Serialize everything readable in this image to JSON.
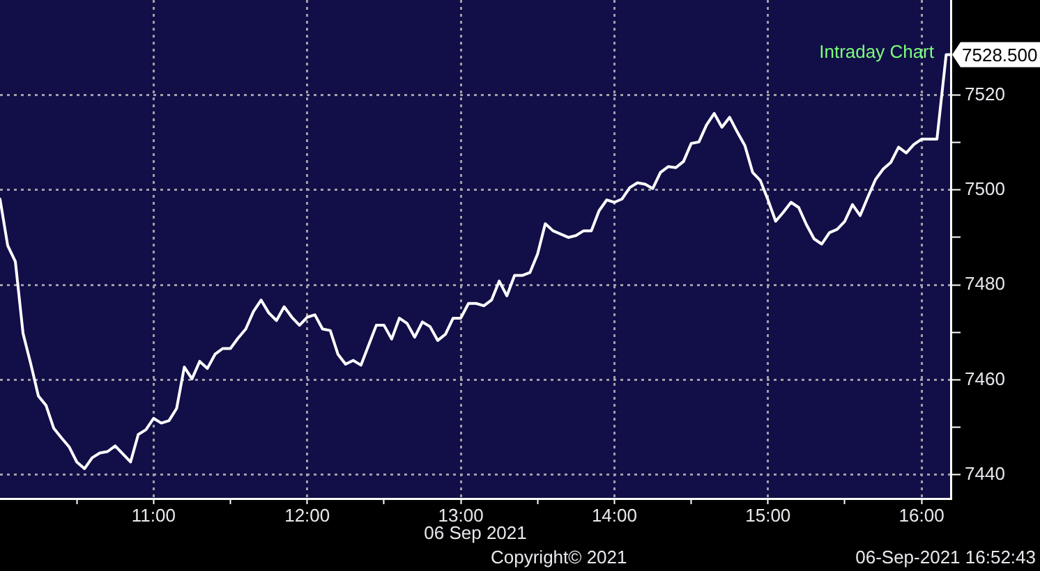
{
  "chart_data": {
    "type": "line",
    "title": "Intraday Chart",
    "xlabel": "06 Sep 2021",
    "x": [
      10.0,
      10.05,
      10.1,
      10.15,
      10.2,
      10.25,
      10.3,
      10.35,
      10.4,
      10.45,
      10.5,
      10.55,
      10.6,
      10.65,
      10.7,
      10.75,
      10.8,
      10.85,
      10.9,
      10.95,
      11.0,
      11.05,
      11.1,
      11.15,
      11.2,
      11.25,
      11.3,
      11.35,
      11.4,
      11.45,
      11.5,
      11.55,
      11.6,
      11.65,
      11.7,
      11.75,
      11.8,
      11.85,
      11.9,
      11.95,
      12.0,
      12.05,
      12.1,
      12.15,
      12.2,
      12.25,
      12.3,
      12.35,
      12.4,
      12.45,
      12.5,
      12.55,
      12.6,
      12.65,
      12.7,
      12.75,
      12.8,
      12.85,
      12.9,
      12.95,
      13.0,
      13.05,
      13.1,
      13.15,
      13.2,
      13.25,
      13.3,
      13.35,
      13.4,
      13.45,
      13.5,
      13.55,
      13.6,
      13.65,
      13.7,
      13.75,
      13.8,
      13.85,
      13.9,
      13.95,
      14.0,
      14.05,
      14.1,
      14.15,
      14.2,
      14.25,
      14.3,
      14.35,
      14.4,
      14.45,
      14.5,
      14.55,
      14.6,
      14.65,
      14.7,
      14.75,
      14.8,
      14.85,
      14.9,
      14.95,
      15.0,
      15.05,
      15.1,
      15.15,
      15.2,
      15.25,
      15.3,
      15.35,
      15.4,
      15.45,
      15.5,
      15.55,
      15.6,
      15.65,
      15.7,
      15.75,
      15.8,
      15.85,
      15.9,
      15.95,
      16.0,
      16.05,
      16.1,
      16.16,
      16.19
    ],
    "values": [
      7498.1,
      7488.3,
      7484.9,
      7469.8,
      7463.4,
      7456.6,
      7454.6,
      7449.8,
      7447.8,
      7445.9,
      7442.7,
      7441.3,
      7443.6,
      7444.6,
      7444.9,
      7446.1,
      7444.4,
      7442.7,
      7448.5,
      7449.5,
      7451.9,
      7450.9,
      7451.4,
      7454.0,
      7462.7,
      7460.2,
      7463.9,
      7462.4,
      7465.4,
      7466.6,
      7466.6,
      7468.8,
      7470.7,
      7474.4,
      7476.8,
      7474.1,
      7472.5,
      7475.4,
      7473.2,
      7471.5,
      7473.2,
      7473.7,
      7470.7,
      7470.4,
      7465.4,
      7463.3,
      7464.1,
      7463.1,
      7467.3,
      7471.5,
      7471.5,
      7468.6,
      7473.0,
      7471.9,
      7469.0,
      7472.2,
      7471.2,
      7468.3,
      7469.6,
      7473.0,
      7473.0,
      7476.1,
      7476.1,
      7475.6,
      7476.8,
      7480.8,
      7477.7,
      7482.0,
      7482.0,
      7482.6,
      7486.5,
      7492.9,
      7491.4,
      7490.7,
      7490.0,
      7490.4,
      7491.4,
      7491.4,
      7495.6,
      7497.9,
      7497.4,
      7498.1,
      7500.5,
      7501.5,
      7501.2,
      7500.3,
      7503.7,
      7504.9,
      7504.7,
      7506.0,
      7509.8,
      7510.1,
      7513.7,
      7516.1,
      7513.2,
      7515.3,
      7512.2,
      7509.3,
      7503.7,
      7502.0,
      7497.9,
      7493.4,
      7495.3,
      7497.4,
      7496.3,
      7492.7,
      7489.7,
      7488.6,
      7491.0,
      7491.7,
      7493.4,
      7496.9,
      7494.6,
      7498.5,
      7502.2,
      7504.4,
      7505.8,
      7509.0,
      7507.8,
      7509.6,
      7510.7,
      7510.7,
      7510.7,
      7528.5,
      7528.5
    ],
    "color": "#ffffff",
    "xlim": [
      10,
      16.19
    ],
    "xticks": [
      {
        "value": 10.5,
        "label": null
      },
      {
        "value": 11,
        "label": "11:00"
      },
      {
        "value": 11.5,
        "label": null
      },
      {
        "value": 12,
        "label": "12:00"
      },
      {
        "value": 12.5,
        "label": null
      },
      {
        "value": 13,
        "label": "13:00"
      },
      {
        "value": 13.5,
        "label": null
      },
      {
        "value": 14,
        "label": "14:00"
      },
      {
        "value": 14.5,
        "label": null
      },
      {
        "value": 15,
        "label": "15:00"
      },
      {
        "value": 15.5,
        "label": null
      },
      {
        "value": 16,
        "label": "16:00"
      }
    ],
    "ylim": [
      7435,
      7540
    ],
    "yticks": [
      7440,
      {
        "value": 7450,
        "label": null
      },
      7460,
      {
        "value": 7470,
        "label": null
      },
      7480,
      {
        "value": 7490,
        "label": null
      },
      7500,
      {
        "value": 7510,
        "label": null
      },
      7520
    ],
    "grid": true,
    "annotations": [
      {
        "text": "7528.500",
        "x": 16.19,
        "y": 7528.5
      },
      "Copyright© 2021",
      "06-Sep-2021 16:52:43"
    ]
  }
}
